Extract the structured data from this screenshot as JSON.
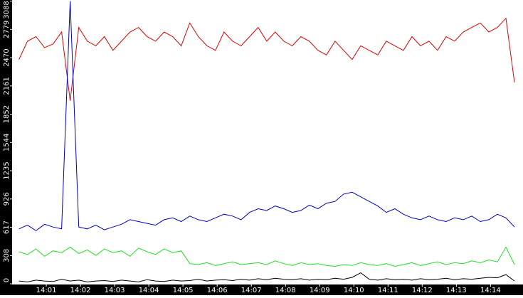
{
  "chart_data": {
    "type": "line",
    "x": [
      0.2,
      0.45,
      0.7,
      0.95,
      1.2,
      1.45,
      1.7,
      1.95,
      2.2,
      2.45,
      2.7,
      2.95,
      3.2,
      3.45,
      3.7,
      3.95,
      4.2,
      4.45,
      4.7,
      4.95,
      5.2,
      5.45,
      5.7,
      5.95,
      6.2,
      6.45,
      6.7,
      6.95,
      7.2,
      7.45,
      7.7,
      7.95,
      8.2,
      8.45,
      8.7,
      8.95,
      9.2,
      9.45,
      9.7,
      9.95,
      10.2,
      10.45,
      10.7,
      10.95,
      11.2,
      11.45,
      11.7,
      11.95,
      12.2,
      12.45,
      12.7,
      12.95,
      13.2,
      13.45,
      13.7,
      13.95,
      14.2,
      14.45,
      14.7
    ],
    "series": [
      {
        "color": "#e00000",
        "values": [
          2450,
          2650,
          2700,
          2580,
          2620,
          2750,
          2000,
          2800,
          2650,
          2600,
          2700,
          2550,
          2650,
          2750,
          2800,
          2700,
          2650,
          2750,
          2700,
          2600,
          2850,
          2700,
          2600,
          2550,
          2750,
          2650,
          2600,
          2700,
          2800,
          2650,
          2750,
          2650,
          2600,
          2700,
          2650,
          2550,
          2500,
          2650,
          2550,
          2450,
          2600,
          2550,
          2500,
          2650,
          2600,
          2550,
          2700,
          2600,
          2650,
          2550,
          2700,
          2650,
          2750,
          2800,
          2850,
          2750,
          2800,
          2900,
          2200
        ]
      },
      {
        "color": "#0000c0",
        "values": [
          600,
          640,
          580,
          650,
          620,
          600,
          3088,
          620,
          600,
          640,
          590,
          620,
          650,
          700,
          680,
          660,
          640,
          700,
          720,
          680,
          740,
          700,
          680,
          720,
          760,
          740,
          700,
          780,
          820,
          800,
          850,
          820,
          780,
          800,
          860,
          820,
          880,
          900,
          980,
          1000,
          950,
          900,
          850,
          780,
          820,
          760,
          720,
          700,
          740,
          700,
          680,
          720,
          700,
          740,
          680,
          700,
          760,
          720,
          620
        ]
      },
      {
        "color": "#20e020",
        "values": [
          350,
          320,
          380,
          300,
          360,
          340,
          400,
          330,
          370,
          310,
          380,
          340,
          360,
          300,
          390,
          350,
          320,
          380,
          340,
          360,
          220,
          210,
          230,
          200,
          220,
          240,
          210,
          220,
          230,
          210,
          250,
          220,
          200,
          230,
          210,
          220,
          200,
          190,
          210,
          200,
          230,
          210,
          200,
          220,
          190,
          210,
          230,
          200,
          220,
          240,
          210,
          230,
          220,
          250,
          230,
          260,
          240,
          400,
          210
        ]
      },
      {
        "color": "#000000",
        "values": [
          30,
          20,
          40,
          30,
          25,
          50,
          30,
          40,
          20,
          30,
          35,
          25,
          40,
          30,
          20,
          45,
          30,
          25,
          40,
          30,
          35,
          50,
          30,
          40,
          45,
          35,
          50,
          40,
          55,
          45,
          60,
          50,
          45,
          55,
          40,
          50,
          45,
          60,
          50,
          70,
          120,
          50,
          40,
          55,
          45,
          50,
          40,
          55,
          45,
          50,
          60,
          45,
          55,
          50,
          60,
          70,
          65,
          100,
          30
        ]
      }
    ],
    "xlim": [
      0,
      14.95
    ],
    "xticks": [
      {
        "value": 1,
        "label": "14:01"
      },
      {
        "value": 2,
        "label": "14:02"
      },
      {
        "value": 3,
        "label": "14:03"
      },
      {
        "value": 4,
        "label": "14:04"
      },
      {
        "value": 5,
        "label": "14:05"
      },
      {
        "value": 6,
        "label": "14:06"
      },
      {
        "value": 7,
        "label": "14:07"
      },
      {
        "value": 8,
        "label": "14:08"
      },
      {
        "value": 9,
        "label": "14:09"
      },
      {
        "value": 10,
        "label": "14:10"
      },
      {
        "value": 11,
        "label": "14:11"
      },
      {
        "value": 12,
        "label": "14:12"
      },
      {
        "value": 13,
        "label": "14:13"
      },
      {
        "value": 14,
        "label": "14:14"
      }
    ],
    "ylim": [
      0,
      3100
    ],
    "yticks": [
      0,
      308,
      617,
      926,
      1235,
      1544,
      1852,
      2161,
      2470,
      2779,
      3088
    ]
  }
}
